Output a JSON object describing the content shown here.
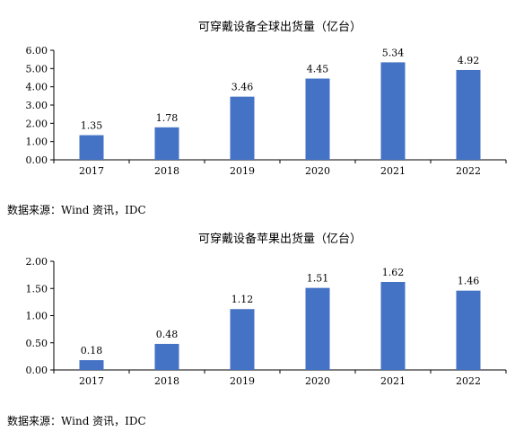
{
  "chart_data": [
    {
      "type": "bar",
      "title": "可穿戴设备全球出货量（亿台）",
      "categories": [
        "2017",
        "2018",
        "2019",
        "2020",
        "2021",
        "2022"
      ],
      "values": [
        1.35,
        1.78,
        3.46,
        4.45,
        5.34,
        4.92
      ],
      "data_labels": [
        "1.35",
        "1.78",
        "3.46",
        "4.45",
        "5.34",
        "4.92"
      ],
      "ylim": [
        0,
        6
      ],
      "yticks": [
        "0.00",
        "1.00",
        "2.00",
        "3.00",
        "4.00",
        "5.00",
        "6.00"
      ],
      "ytick_values": [
        0,
        1,
        2,
        3,
        4,
        5,
        6
      ],
      "grid": false,
      "bar_color": "#4472C4"
    },
    {
      "type": "bar",
      "title": "可穿戴设备苹果出货量（亿台）",
      "categories": [
        "2017",
        "2018",
        "2019",
        "2020",
        "2021",
        "2022"
      ],
      "values": [
        0.18,
        0.48,
        1.12,
        1.51,
        1.62,
        1.46
      ],
      "data_labels": [
        "0.18",
        "0.48",
        "1.12",
        "1.51",
        "1.62",
        "1.46"
      ],
      "ylim": [
        0,
        2
      ],
      "yticks": [
        "0.00",
        "0.50",
        "1.00",
        "1.50",
        "2.00"
      ],
      "ytick_values": [
        0,
        0.5,
        1,
        1.5,
        2
      ],
      "grid": false,
      "bar_color": "#4472C4"
    }
  ],
  "sources": [
    "数据来源：Wind 资讯，IDC",
    "数据来源：Wind 资讯，IDC"
  ]
}
